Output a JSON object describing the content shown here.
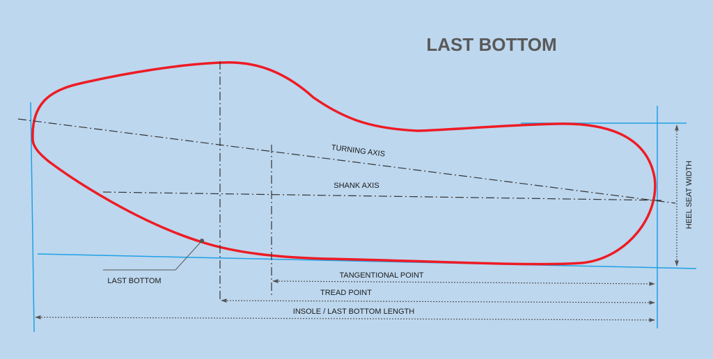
{
  "title": "LAST BOTTOM",
  "labels": {
    "turning_axis": "TURNING AXIS",
    "shank_axis": "SHANK AXIS",
    "last_bottom": "LAST BOTTOM",
    "tangential_point": "TANGENTIONAL POINT",
    "tread_point": "TREAD POINT",
    "length": "INSOLE / LAST BOTTOM LENGTH",
    "heel_seat_width": "HEEL SEAT WIDTH"
  },
  "colors": {
    "background": "#bdd7ee",
    "outline": "#ee1b24",
    "reference_lines": "#1ea0e6",
    "axis_lines": "#333333",
    "dimension": "#555555",
    "title": "#595959",
    "text": "#1a1a1a"
  }
}
